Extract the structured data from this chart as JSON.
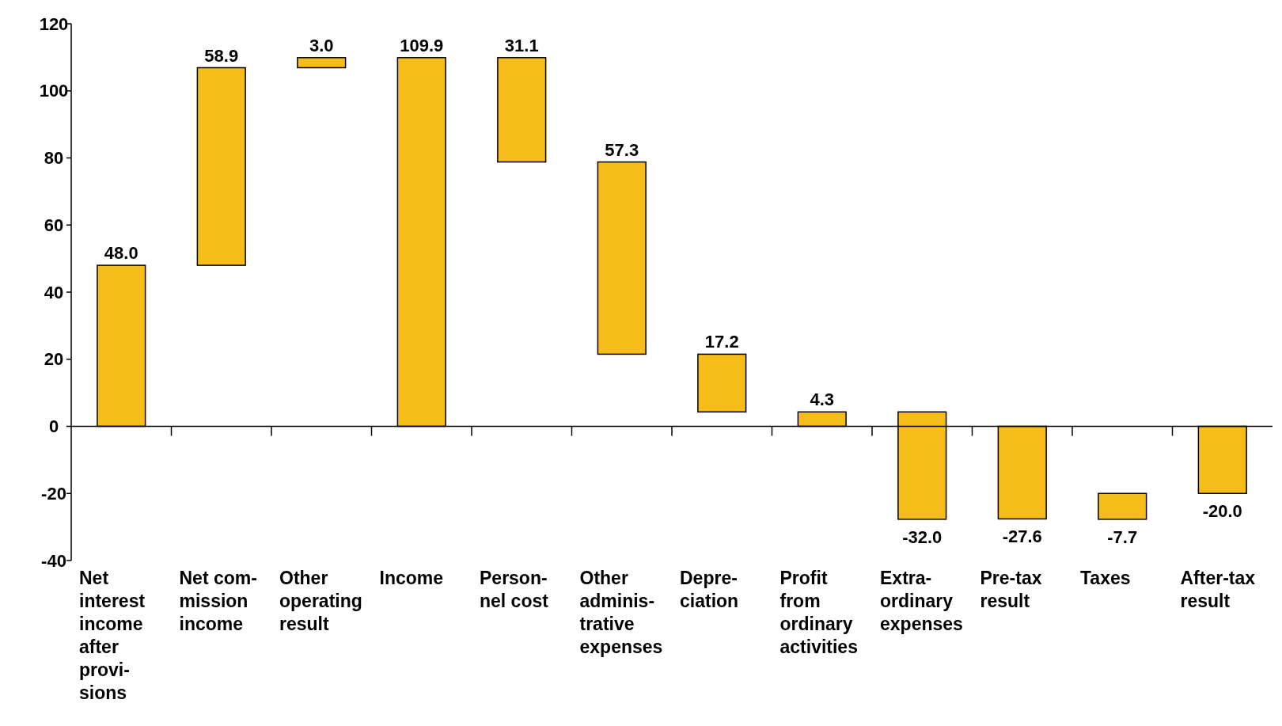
{
  "chart_data": {
    "type": "bar",
    "ylim": [
      -40,
      120
    ],
    "yticks": [
      -40,
      -20,
      0,
      20,
      40,
      60,
      80,
      100,
      120
    ],
    "categories": [
      "Net interest income after provi-sions",
      "Net com-mission income",
      "Other operating result",
      "Income",
      "Person-nel cost",
      "Other adminis-trative expenses",
      "Depre-ciation",
      "Profit from ordinary activities",
      "Extra-ordinary expenses",
      "Pre-tax result",
      "Taxes",
      "After-tax result"
    ],
    "values": [
      48.0,
      58.9,
      3.0,
      109.9,
      -31.1,
      -57.3,
      -17.2,
      4.3,
      -32.0,
      -27.6,
      -7.7,
      -20.0
    ],
    "base": [
      0,
      48.0,
      106.9,
      0,
      109.9,
      78.8,
      21.5,
      0,
      4.3,
      0,
      -20.0,
      0
    ],
    "value_labels": [
      "48.0",
      "58.9",
      "3.0",
      "109.9",
      "31.1",
      "57.3",
      "17.2",
      "4.3",
      "-32.0",
      "-27.6",
      "-7.7",
      "-20.0"
    ],
    "color": "#f5bc1a"
  }
}
